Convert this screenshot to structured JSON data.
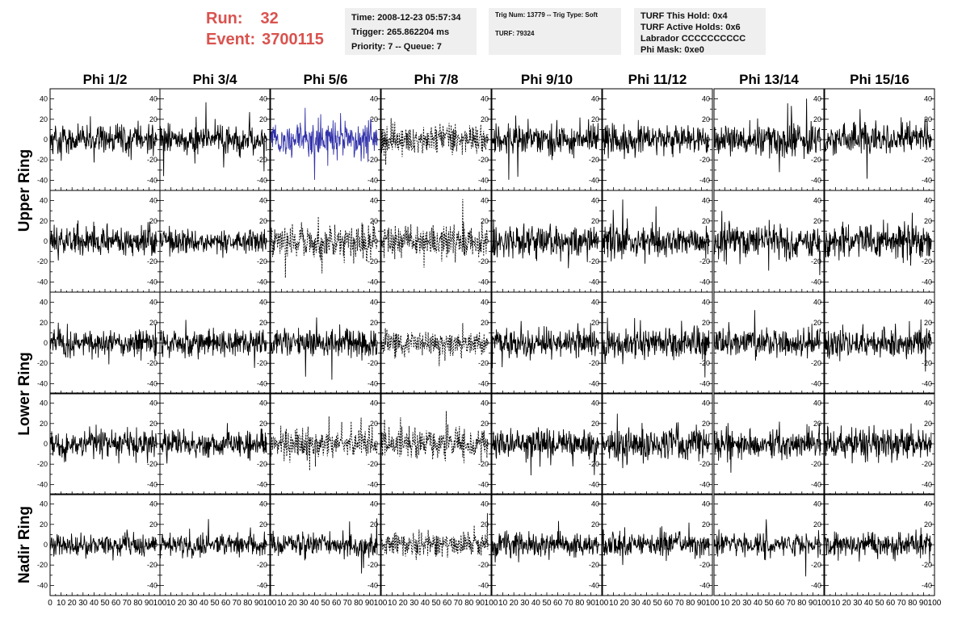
{
  "run_label": "Run:",
  "run_value": "32",
  "event_label": "Event:",
  "event_value": "3700115",
  "info_box_1": {
    "time": "Time: 2008-12-23 05:57:34",
    "trigger": "Trigger: 265.862204 ms",
    "priority": "Priority: 7 -- Queue: 7"
  },
  "info_box_2": {
    "trig": "Trig Num: 13779 -- Trig Type: Soft",
    "turf": "TURF: 79324"
  },
  "info_box_3": {
    "this_hold": "TURF This Hold: 0x4",
    "active_holds": "TURF Active Holds: 0x6",
    "labrador": "Labrador CCCCCCCCCC",
    "phi_mask": "Phi Mask: 0xe0"
  },
  "colors": {
    "trace": "#000000",
    "highlight": "#3333aa",
    "run_text": "#d9534f"
  },
  "chart_data": {
    "type": "line",
    "columns": [
      "Phi 1/2",
      "Phi 3/4",
      "Phi 5/6",
      "Phi 7/8",
      "Phi 9/10",
      "Phi 11/12",
      "Phi 13/14",
      "Phi 15/16"
    ],
    "ring_labels": [
      "Upper Ring",
      "Lower Ring",
      "Nadir Ring"
    ],
    "rows": 5,
    "ylim": [
      -50,
      50
    ],
    "yticks": [
      -40,
      -20,
      0,
      20,
      40
    ],
    "xlim": [
      0,
      100
    ],
    "xticks": [
      0,
      10,
      20,
      30,
      40,
      50,
      60,
      70,
      80,
      90,
      100
    ],
    "x_tick_labels": [
      "0",
      "10",
      "20",
      "30",
      "40",
      "50",
      "60",
      "70",
      "80",
      "90",
      "100"
    ],
    "samples_per_trace": 260,
    "x_range": [
      0,
      97
    ],
    "highlighted_panel": {
      "row": 0,
      "col": 2
    },
    "dashed_panels": [
      [
        0,
        3
      ],
      [
        1,
        2
      ],
      [
        1,
        3
      ],
      [
        2,
        3
      ],
      [
        3,
        2
      ],
      [
        3,
        3
      ],
      [
        4,
        3
      ]
    ],
    "noise_amplitude": [
      [
        13,
        12,
        15,
        14,
        14,
        13,
        14,
        13
      ],
      [
        13,
        10,
        15,
        13,
        14,
        13,
        14,
        14
      ],
      [
        12,
        11,
        12,
        11,
        13,
        13,
        12,
        12
      ],
      [
        12,
        12,
        12,
        14,
        13,
        14,
        12,
        13
      ],
      [
        10,
        10,
        10,
        10,
        10,
        11,
        10,
        11
      ]
    ]
  }
}
